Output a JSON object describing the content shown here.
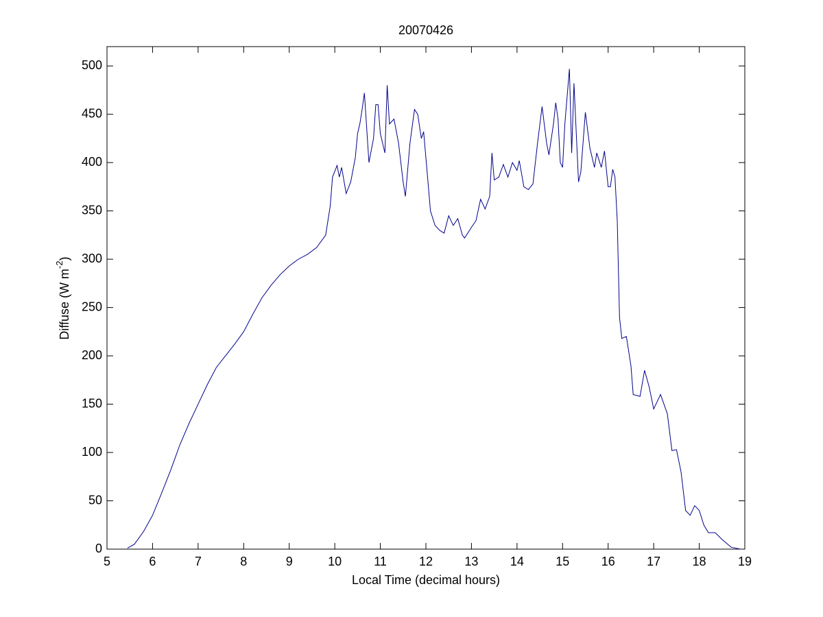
{
  "chart_data": {
    "type": "line",
    "title": "20070426",
    "xlabel": "Local Time (decimal hours)",
    "ylabel": {
      "text": "Diffuse (W m",
      "superscript": "-2",
      "suffix": ")"
    },
    "x": [
      5.45,
      5.6,
      5.8,
      6.0,
      6.2,
      6.4,
      6.6,
      6.8,
      7.0,
      7.2,
      7.4,
      7.6,
      7.8,
      8.0,
      8.2,
      8.4,
      8.6,
      8.8,
      9.0,
      9.2,
      9.4,
      9.6,
      9.8,
      9.9,
      9.95,
      10.05,
      10.1,
      10.15,
      10.25,
      10.35,
      10.45,
      10.5,
      10.55,
      10.6,
      10.65,
      10.75,
      10.85,
      10.9,
      10.95,
      11.0,
      11.1,
      11.15,
      11.2,
      11.3,
      11.4,
      11.5,
      11.55,
      11.65,
      11.75,
      11.82,
      11.9,
      11.95,
      12.0,
      12.1,
      12.2,
      12.3,
      12.4,
      12.5,
      12.6,
      12.7,
      12.8,
      12.85,
      13.0,
      13.1,
      13.2,
      13.3,
      13.4,
      13.45,
      13.5,
      13.6,
      13.7,
      13.8,
      13.9,
      14.0,
      14.05,
      14.15,
      14.25,
      14.35,
      14.45,
      14.55,
      14.65,
      14.7,
      14.8,
      14.85,
      14.9,
      14.95,
      15.0,
      15.05,
      15.15,
      15.2,
      15.25,
      15.35,
      15.4,
      15.5,
      15.6,
      15.7,
      15.75,
      15.85,
      15.92,
      16.0,
      16.05,
      16.1,
      16.15,
      16.2,
      16.25,
      16.3,
      16.4,
      16.5,
      16.55,
      16.7,
      16.8,
      16.9,
      17.0,
      17.15,
      17.3,
      17.4,
      17.5,
      17.6,
      17.7,
      17.8,
      17.9,
      18.0,
      18.1,
      18.2,
      18.35,
      18.5,
      18.7,
      18.9
    ],
    "series": [
      {
        "color": "#00008b",
        "values": [
          1,
          5,
          18,
          35,
          58,
          82,
          108,
          130,
          150,
          170,
          188,
          200,
          212,
          225,
          243,
          260,
          273,
          284,
          293,
          300,
          305,
          312,
          325,
          355,
          385,
          397,
          385,
          395,
          368,
          380,
          405,
          430,
          440,
          455,
          472,
          400,
          425,
          460,
          460,
          430,
          410,
          480,
          440,
          445,
          420,
          380,
          365,
          420,
          455,
          450,
          425,
          432,
          405,
          350,
          335,
          330,
          327,
          345,
          335,
          342,
          325,
          322,
          333,
          340,
          362,
          352,
          365,
          410,
          382,
          385,
          398,
          385,
          400,
          392,
          402,
          375,
          372,
          378,
          420,
          458,
          420,
          408,
          440,
          462,
          445,
          400,
          395,
          440,
          497,
          410,
          482,
          380,
          390,
          452,
          415,
          395,
          410,
          395,
          412,
          375,
          375,
          393,
          385,
          340,
          240,
          218,
          220,
          190,
          160,
          158,
          185,
          168,
          145,
          160,
          140,
          102,
          103,
          80,
          40,
          35,
          45,
          40,
          25,
          17,
          17,
          10,
          2,
          0
        ]
      }
    ],
    "xlim": [
      5,
      19
    ],
    "ylim": [
      0,
      520
    ],
    "xticks": [
      5,
      6,
      7,
      8,
      9,
      10,
      11,
      12,
      13,
      14,
      15,
      16,
      17,
      18,
      19
    ],
    "yticks": [
      0,
      50,
      100,
      150,
      200,
      250,
      300,
      350,
      400,
      450,
      500
    ],
    "grid": false
  }
}
